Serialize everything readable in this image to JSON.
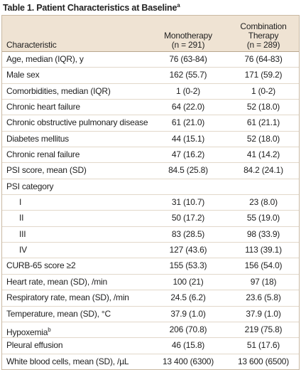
{
  "title": {
    "text": "Table 1. Patient Characteristics at Baseline",
    "sup": "a"
  },
  "header": {
    "characteristic": "Characteristic",
    "mono": [
      "Monotherapy",
      "(n = 291)"
    ],
    "combo": [
      "Combination",
      "Therapy",
      "(n = 289)"
    ]
  },
  "rows": [
    {
      "label": "Age, median (IQR), y",
      "mono": "76 (63-84)",
      "combo": "76 (64-83)"
    },
    {
      "label": "Male sex",
      "mono": "162 (55.7)",
      "combo": "171 (59.2)"
    },
    {
      "label": "Comorbidities, median (IQR)",
      "mono": "1 (0-2)",
      "combo": "1 (0-2)"
    },
    {
      "label": "Chronic heart failure",
      "mono": "64 (22.0)",
      "combo": "52 (18.0)"
    },
    {
      "label": "Chronic obstructive pulmonary disease",
      "mono": "61 (21.0)",
      "combo": "61 (21.1)"
    },
    {
      "label": "Diabetes mellitus",
      "mono": "44 (15.1)",
      "combo": "52 (18.0)"
    },
    {
      "label": "Chronic renal failure",
      "mono": "47 (16.2)",
      "combo": "41 (14.2)"
    },
    {
      "label": "PSI score, mean (SD)",
      "mono": "84.5 (25.8)",
      "combo": "84.2 (24.1)"
    },
    {
      "label": "PSI category",
      "subrows": [
        {
          "label": "I",
          "mono": "31 (10.7)",
          "combo": "23 (8.0)"
        },
        {
          "label": "II",
          "mono": "50 (17.2)",
          "combo": "55 (19.0)"
        },
        {
          "label": "III",
          "mono": "83 (28.5)",
          "combo": "98 (33.9)"
        },
        {
          "label": "IV",
          "mono": "127 (43.6)",
          "combo": "113 (39.1)"
        }
      ]
    },
    {
      "label": "CURB-65 score ≥2",
      "mono": "155 (53.3)",
      "combo": "156 (54.0)"
    },
    {
      "label": "Heart rate, mean (SD), /min",
      "mono": "100 (21)",
      "combo": "97 (18)"
    },
    {
      "label": "Respiratory rate, mean (SD), /min",
      "mono": "24.5 (6.2)",
      "combo": "23.6 (5.8)"
    },
    {
      "label": "Temperature, mean (SD), °C",
      "mono": "37.9 (1.0)",
      "combo": "37.9 (1.0)"
    },
    {
      "label": "Hypoxemia",
      "sup": "b",
      "mono": "206 (70.8)",
      "combo": "219 (75.8)"
    },
    {
      "label": "Pleural effusion",
      "mono": "46 (15.8)",
      "combo": "51 (17.6)"
    },
    {
      "label": "White blood cells, mean (SD), /µL",
      "mono": "13 400 (6300)",
      "combo": "13 600 (6500)"
    }
  ]
}
